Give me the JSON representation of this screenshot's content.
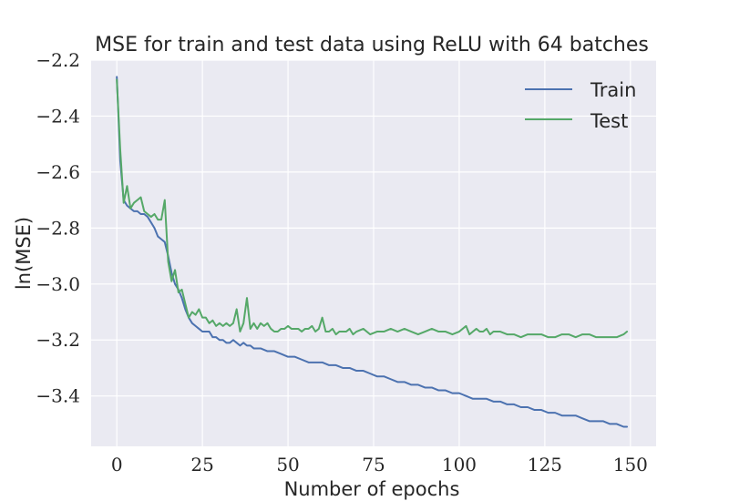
{
  "chart_data": {
    "type": "line",
    "title": "MSE for train and test data using ReLU with 64 batches",
    "xlabel": "Number of epochs",
    "ylabel": "ln(MSE)",
    "xlim": [
      -7.5,
      157.5
    ],
    "ylim": [
      -3.58,
      -2.2
    ],
    "xticks": [
      0,
      25,
      50,
      75,
      100,
      125,
      150
    ],
    "yticks": [
      -2.2,
      -2.4,
      -2.6,
      -2.8,
      -3.0,
      -3.2,
      -3.4
    ],
    "x_tick_labels": [
      "0",
      "25",
      "50",
      "75",
      "100",
      "125",
      "150"
    ],
    "y_tick_labels": [
      "−2.2",
      "−2.4",
      "−2.6",
      "−2.8",
      "−3.0",
      "−3.2",
      "−3.4"
    ],
    "grid": true,
    "background": "#eaeaf2",
    "legend_position": "top-right",
    "series": [
      {
        "name": "Train",
        "color": "#4c72b0",
        "x": [
          0,
          1,
          2,
          3,
          4,
          5,
          6,
          7,
          8,
          9,
          10,
          11,
          12,
          13,
          14,
          15,
          16,
          17,
          18,
          19,
          20,
          21,
          22,
          23,
          24,
          25,
          26,
          27,
          28,
          29,
          30,
          31,
          32,
          33,
          34,
          35,
          36,
          37,
          38,
          39,
          40,
          42,
          44,
          46,
          48,
          50,
          52,
          54,
          56,
          58,
          60,
          62,
          64,
          66,
          68,
          70,
          72,
          74,
          76,
          78,
          80,
          82,
          84,
          86,
          88,
          90,
          92,
          94,
          96,
          98,
          100,
          102,
          104,
          106,
          108,
          110,
          112,
          114,
          116,
          118,
          120,
          122,
          124,
          126,
          128,
          130,
          132,
          134,
          136,
          138,
          140,
          142,
          144,
          146,
          148,
          149
        ],
        "y": [
          -2.26,
          -2.56,
          -2.7,
          -2.72,
          -2.73,
          -2.74,
          -2.74,
          -2.75,
          -2.75,
          -2.76,
          -2.78,
          -2.8,
          -2.83,
          -2.84,
          -2.85,
          -2.9,
          -2.96,
          -3.0,
          -3.02,
          -3.05,
          -3.09,
          -3.12,
          -3.14,
          -3.15,
          -3.16,
          -3.17,
          -3.17,
          -3.17,
          -3.19,
          -3.19,
          -3.2,
          -3.2,
          -3.21,
          -3.21,
          -3.2,
          -3.21,
          -3.22,
          -3.21,
          -3.22,
          -3.22,
          -3.23,
          -3.23,
          -3.24,
          -3.24,
          -3.25,
          -3.26,
          -3.26,
          -3.27,
          -3.28,
          -3.28,
          -3.28,
          -3.29,
          -3.29,
          -3.3,
          -3.3,
          -3.31,
          -3.31,
          -3.32,
          -3.33,
          -3.33,
          -3.34,
          -3.35,
          -3.35,
          -3.36,
          -3.36,
          -3.37,
          -3.37,
          -3.38,
          -3.38,
          -3.39,
          -3.39,
          -3.4,
          -3.41,
          -3.41,
          -3.41,
          -3.42,
          -3.42,
          -3.43,
          -3.43,
          -3.44,
          -3.44,
          -3.45,
          -3.45,
          -3.46,
          -3.46,
          -3.47,
          -3.47,
          -3.47,
          -3.48,
          -3.49,
          -3.49,
          -3.49,
          -3.5,
          -3.5,
          -3.51,
          -3.51
        ]
      },
      {
        "name": "Test",
        "color": "#55a868",
        "x": [
          0,
          1,
          2,
          3,
          4,
          5,
          6,
          7,
          8,
          9,
          10,
          11,
          12,
          13,
          14,
          15,
          16,
          17,
          18,
          19,
          20,
          21,
          22,
          23,
          24,
          25,
          26,
          27,
          28,
          29,
          30,
          31,
          32,
          33,
          34,
          35,
          36,
          37,
          38,
          39,
          40,
          41,
          42,
          43,
          44,
          45,
          46,
          47,
          48,
          49,
          50,
          51,
          52,
          53,
          54,
          55,
          56,
          57,
          58,
          59,
          60,
          61,
          62,
          63,
          64,
          65,
          66,
          67,
          68,
          69,
          70,
          72,
          74,
          76,
          78,
          80,
          82,
          84,
          86,
          88,
          90,
          92,
          94,
          96,
          98,
          100,
          101,
          102,
          103,
          104,
          105,
          106,
          107,
          108,
          109,
          110,
          112,
          114,
          116,
          118,
          120,
          122,
          124,
          126,
          128,
          130,
          132,
          134,
          136,
          138,
          140,
          142,
          144,
          146,
          148,
          149
        ],
        "y": [
          -2.27,
          -2.52,
          -2.71,
          -2.65,
          -2.73,
          -2.71,
          -2.7,
          -2.69,
          -2.74,
          -2.75,
          -2.76,
          -2.75,
          -2.77,
          -2.77,
          -2.7,
          -2.92,
          -2.99,
          -2.95,
          -3.03,
          -3.02,
          -3.07,
          -3.12,
          -3.1,
          -3.11,
          -3.09,
          -3.12,
          -3.12,
          -3.14,
          -3.13,
          -3.15,
          -3.14,
          -3.15,
          -3.14,
          -3.15,
          -3.14,
          -3.09,
          -3.17,
          -3.14,
          -3.05,
          -3.16,
          -3.14,
          -3.16,
          -3.14,
          -3.15,
          -3.14,
          -3.16,
          -3.17,
          -3.17,
          -3.16,
          -3.16,
          -3.15,
          -3.16,
          -3.16,
          -3.16,
          -3.17,
          -3.16,
          -3.16,
          -3.15,
          -3.17,
          -3.16,
          -3.12,
          -3.17,
          -3.17,
          -3.16,
          -3.18,
          -3.17,
          -3.17,
          -3.17,
          -3.16,
          -3.18,
          -3.17,
          -3.16,
          -3.18,
          -3.17,
          -3.17,
          -3.16,
          -3.17,
          -3.16,
          -3.17,
          -3.18,
          -3.17,
          -3.16,
          -3.17,
          -3.17,
          -3.18,
          -3.17,
          -3.16,
          -3.15,
          -3.18,
          -3.17,
          -3.16,
          -3.17,
          -3.17,
          -3.16,
          -3.18,
          -3.17,
          -3.17,
          -3.18,
          -3.18,
          -3.19,
          -3.18,
          -3.18,
          -3.18,
          -3.19,
          -3.19,
          -3.18,
          -3.18,
          -3.19,
          -3.18,
          -3.18,
          -3.19,
          -3.19,
          -3.19,
          -3.19,
          -3.18,
          -3.17
        ]
      }
    ]
  }
}
